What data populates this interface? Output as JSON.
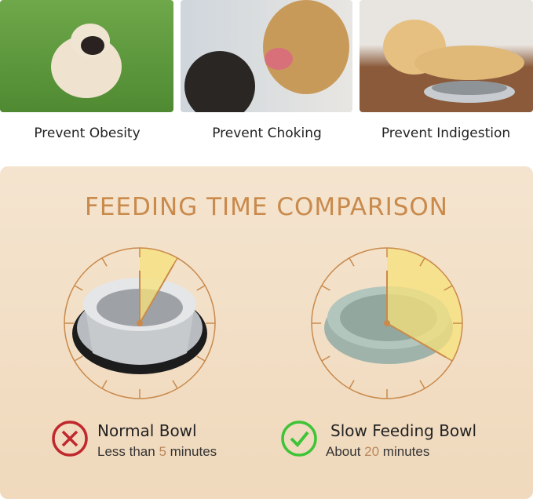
{
  "photos": [
    {
      "caption": "Prevent Obesity",
      "icon": "pug-photo"
    },
    {
      "caption": "Prevent Choking",
      "icon": "golden-retriever-photo"
    },
    {
      "caption": "Prevent Indigestion",
      "icon": "labrador-bowl-photo"
    }
  ],
  "comparison": {
    "title": "FEEDING TIME COMPARISON",
    "normal": {
      "label": "Normal Bowl",
      "prefix": "Less than ",
      "number": "5",
      "suffix": " minutes",
      "minutes": 5,
      "status": "x-icon",
      "color": "#c0282d"
    },
    "slow": {
      "label": "Slow Feeding Bowl",
      "prefix": "About ",
      "number": "20",
      "suffix": " minutes",
      "minutes": 20,
      "status": "check-icon",
      "color": "#3fc437"
    }
  },
  "colors": {
    "accent": "#c98a4c",
    "wedge": "#f7e27a",
    "panel": "#f3e0c6"
  }
}
